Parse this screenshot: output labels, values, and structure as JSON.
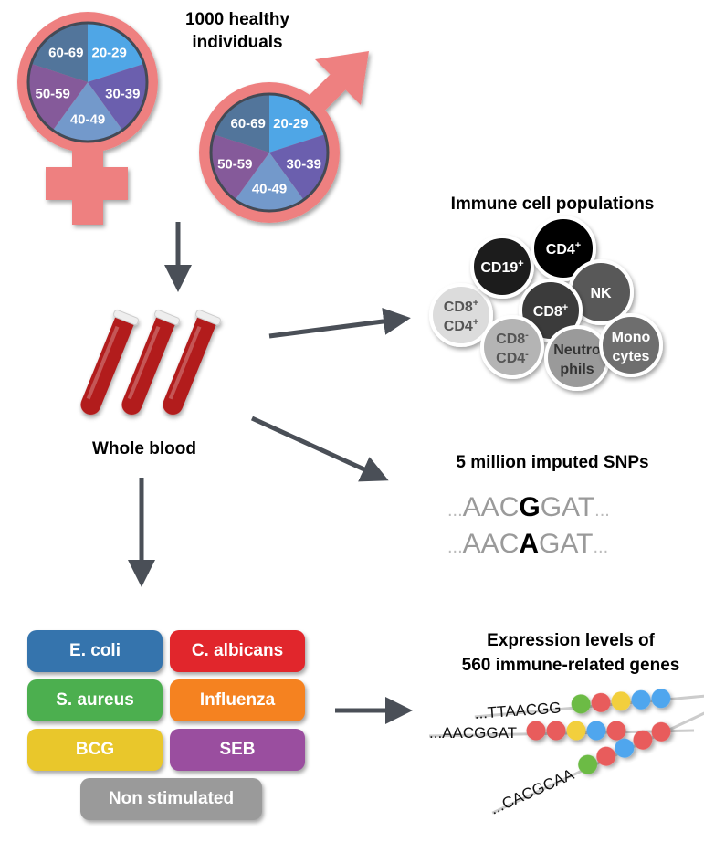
{
  "title": "1000 healthy individuals",
  "title_lines": [
    "1000 healthy",
    "individuals"
  ],
  "age_groups": [
    {
      "label": "20-29",
      "color": "#4fa6e6"
    },
    {
      "label": "30-39",
      "color": "#6b5fae"
    },
    {
      "label": "40-49",
      "color": "#7399cb"
    },
    {
      "label": "50-59",
      "color": "#855a9a"
    },
    {
      "label": "60-69",
      "color": "#52759b"
    }
  ],
  "symbol_color": "#ee8080",
  "whole_blood": "Whole blood",
  "immune": {
    "title": "Immune cell populations",
    "cells": [
      {
        "line1": "CD8",
        "sup1": "+",
        "line2": "CD4",
        "sup2": "+",
        "color": "#dcdcdc",
        "text": "#555"
      },
      {
        "line1": "CD19",
        "sup1": "+",
        "color": "#1e1e1e",
        "text": "#fff"
      },
      {
        "line1": "CD4",
        "sup1": "+",
        "color": "#000000",
        "text": "#fff"
      },
      {
        "line1": "NK",
        "color": "#595959",
        "text": "#fff"
      },
      {
        "line1": "CD8",
        "sup1": "+",
        "color": "#3a3a3a",
        "text": "#fff"
      },
      {
        "line1": "CD8",
        "sup1": "-",
        "line2": "CD4",
        "sup2": "-",
        "color": "#b4b4b4",
        "text": "#555"
      },
      {
        "line1": "Neutro",
        "line2": "phils",
        "color": "#9a9a9a",
        "text": "#333"
      },
      {
        "line1": "Mono",
        "line2": "cytes",
        "color": "#6e6e6e",
        "text": "#fff"
      }
    ]
  },
  "snps": {
    "title": "5 million imputed SNPs",
    "seq1": {
      "pre": "AAC",
      "snp": "G",
      "post": "GAT"
    },
    "seq2": {
      "pre": "AAC",
      "snp": "A",
      "post": "GAT"
    },
    "ellipsis": "..."
  },
  "expression": {
    "title_lines": [
      "Expression levels of",
      "560 immune-related genes"
    ],
    "strands": [
      {
        "seq": "...TTAACGG",
        "beads": [
          "#6cbb45",
          "#e85c5c",
          "#f2cf3c",
          "#4fa6ee",
          "#4fa6ee"
        ]
      },
      {
        "seq": "...AACGGAT",
        "beads": [
          "#e85c5c",
          "#e85c5c",
          "#f2cf3c",
          "#4fa6ee",
          "#e85c5c"
        ]
      },
      {
        "seq": "...CACGCAA",
        "beads": [
          "#6cbb45",
          "#e85c5c",
          "#4fa6ee",
          "#e85c5c",
          "#e85c5c"
        ]
      }
    ]
  },
  "stimuli": [
    {
      "label": "E. coli",
      "color": "#3574ad"
    },
    {
      "label": "C. albicans",
      "color": "#e1262c"
    },
    {
      "label": "S. aureus",
      "color": "#4caf4f"
    },
    {
      "label": "Influenza",
      "color": "#f58220"
    },
    {
      "label": "BCG",
      "color": "#e9c72b"
    },
    {
      "label": "SEB",
      "color": "#9a4e9f"
    },
    {
      "label": "Non stimulated",
      "color": "#9a9a9a"
    }
  ],
  "arrow_color": "#4a4f57",
  "blood_color": "#b21f1f"
}
